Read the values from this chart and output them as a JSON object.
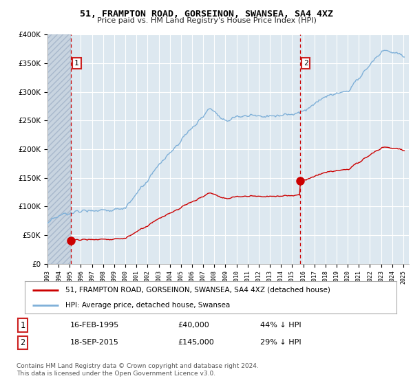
{
  "title": "51, FRAMPTON ROAD, GORSEINON, SWANSEA, SA4 4XZ",
  "subtitle": "Price paid vs. HM Land Registry's House Price Index (HPI)",
  "ylim": [
    0,
    400000
  ],
  "yticks": [
    0,
    50000,
    100000,
    150000,
    200000,
    250000,
    300000,
    350000,
    400000
  ],
  "ytick_labels": [
    "£0",
    "£50K",
    "£100K",
    "£150K",
    "£200K",
    "£250K",
    "£300K",
    "£350K",
    "£400K"
  ],
  "background_color": "#ffffff",
  "plot_bg_color": "#dde8f0",
  "grid_color": "#ffffff",
  "sale1_year": 1995.12,
  "sale1_price": 40000,
  "sale1_label": "1",
  "sale2_year": 2015.72,
  "sale2_price": 145000,
  "sale2_label": "2",
  "sale_color": "#cc0000",
  "hpi_color": "#7fb0d8",
  "vline_color": "#cc0000",
  "legend_sale_label": "51, FRAMPTON ROAD, GORSEINON, SWANSEA, SA4 4XZ (detached house)",
  "legend_hpi_label": "HPI: Average price, detached house, Swansea",
  "annotation1_date": "16-FEB-1995",
  "annotation1_price": "£40,000",
  "annotation1_hpi": "44% ↓ HPI",
  "annotation2_date": "18-SEP-2015",
  "annotation2_price": "£145,000",
  "annotation2_hpi": "29% ↓ HPI",
  "footnote": "Contains HM Land Registry data © Crown copyright and database right 2024.\nThis data is licensed under the Open Government Licence v3.0.",
  "xmin": 1993.0,
  "xmax": 2025.5
}
